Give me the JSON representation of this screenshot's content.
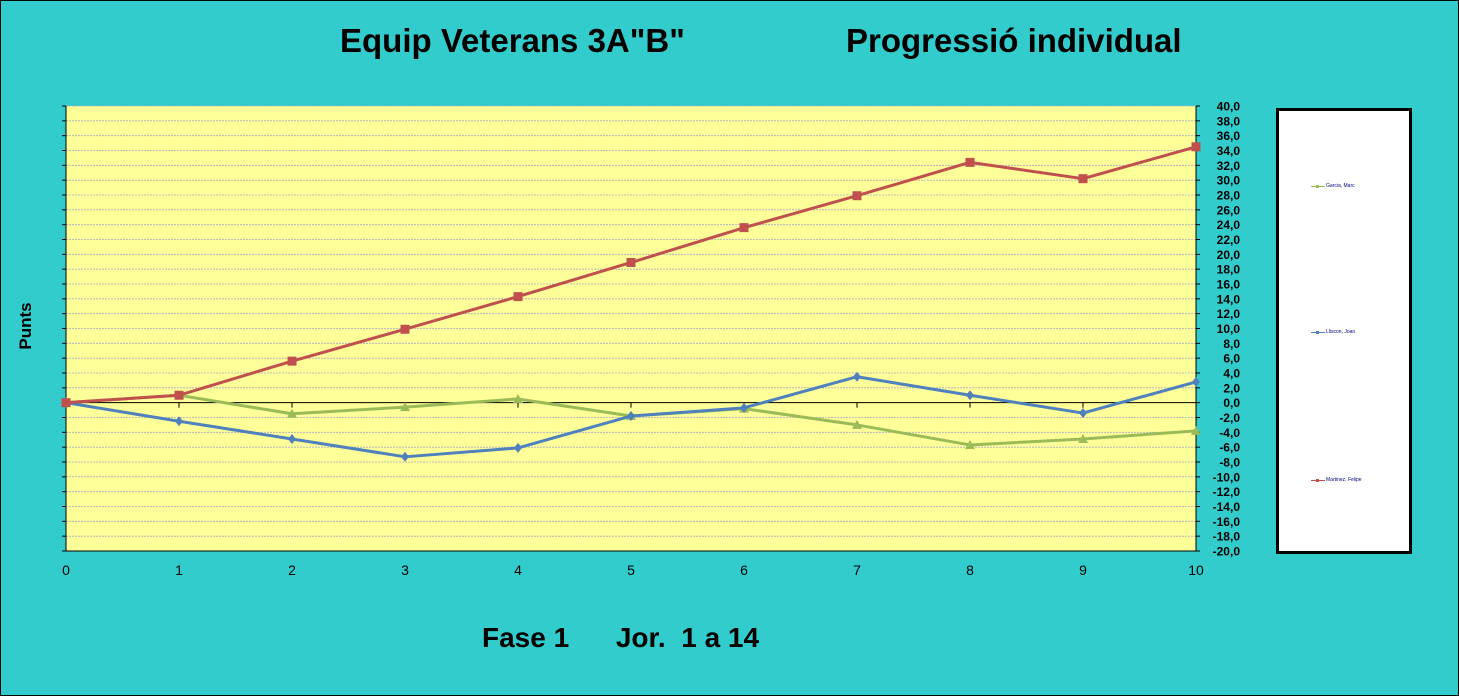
{
  "titles": {
    "left": "Equip Veterans 3A\"B\"",
    "right": "Progressió individual",
    "footer": "Fase 1      Jor.  1 a 14"
  },
  "chart_data": {
    "type": "line",
    "ylabel": "Punts",
    "xlabel": "",
    "x": [
      0,
      1,
      2,
      3,
      4,
      5,
      6,
      7,
      8,
      9,
      10
    ],
    "xlim": [
      0,
      10
    ],
    "ylim": [
      -20,
      40
    ],
    "ytick_step": 2,
    "ytick_labels": [
      "40,0",
      "38,0",
      "36,0",
      "34,0",
      "32,0",
      "30,0",
      "28,0",
      "26,0",
      "24,0",
      "22,0",
      "20,0",
      "18,0",
      "16,0",
      "14,0",
      "12,0",
      "10,0",
      "8,0",
      "6,0",
      "4,0",
      "2,0",
      "0,0",
      "-2,0",
      "-4,0",
      "-6,0",
      "-8,0",
      "-10,0",
      "-12,0",
      "-14,0",
      "-16,0",
      "-18,0",
      "-20,0"
    ],
    "grid": true,
    "legend_position": "right",
    "plot_background": "#ffff99",
    "series": [
      {
        "name": "Garcia, Marc",
        "color": "#9bbb59",
        "marker": "triangle",
        "values": [
          0,
          1.0,
          -1.5,
          -0.6,
          0.5,
          -1.8,
          -0.8,
          -3.0,
          -5.7,
          -4.9,
          -3.8
        ]
      },
      {
        "name": "Lliscon, Joan",
        "color": "#4f81bd",
        "marker": "diamond",
        "values": [
          0,
          -2.5,
          -4.9,
          -7.3,
          -6.1,
          -1.8,
          -0.7,
          3.5,
          1.0,
          -1.4,
          2.8
        ]
      },
      {
        "name": "Martinez, Felipe",
        "color": "#c0504d",
        "marker": "square",
        "values": [
          0,
          1.0,
          5.6,
          9.9,
          14.3,
          18.9,
          23.6,
          27.9,
          32.4,
          30.2,
          34.5
        ]
      }
    ]
  }
}
